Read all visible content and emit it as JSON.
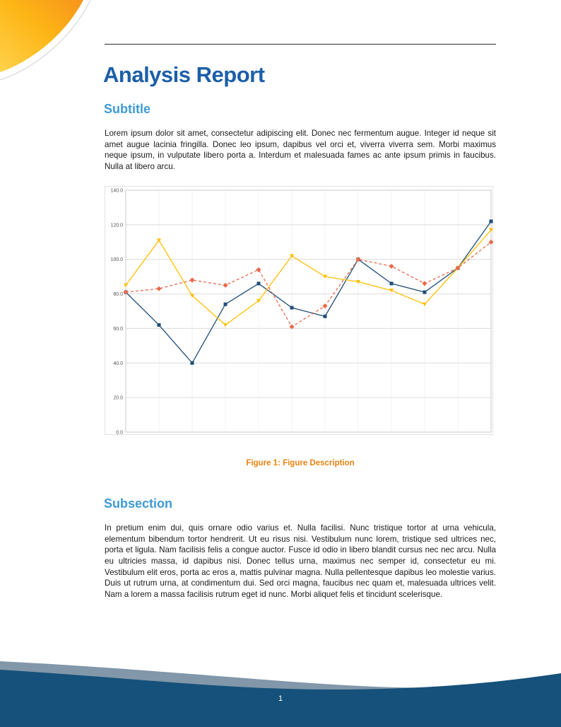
{
  "header": {
    "title": "Analysis Report"
  },
  "subtitle": {
    "heading": "Subtitle",
    "paragraph": "Lorem ipsum dolor sit amet, consectetur adipiscing elit. Donec nec fermentum augue. Integer id neque sit amet augue lacinia fringilla. Donec leo ipsum, dapibus vel orci et, viverra viverra sem. Morbi maximus neque ipsum, in vulputate libero porta a. Interdum et malesuada fames ac ante ipsum primis in faucibus. Nulla at libero arcu."
  },
  "figure": {
    "caption": "Figure 1: Figure Description"
  },
  "subsection": {
    "heading": "Subsection",
    "paragraph": "In pretium enim dui, quis ornare odio varius et. Nulla facilisi. Nunc tristique tortor at urna vehicula, elementum bibendum tortor hendrerit. Ut eu risus nisi. Vestibulum nunc lorem, tristique sed ultrices nec, porta et ligula. Nam facilisis felis a congue auctor. Fusce id odio in libero blandit cursus nec nec arcu. Nulla eu ultricies massa, id dapibus nisi. Donec tellus urna, maximus nec semper id, consectetur eu mi. Vestibulum elit eros, porta ac eros a, mattis pulvinar magna. Nulla pellentesque dapibus leo molestie varius. Duis ut rutrum urna, at condimentum dui. Sed orci magna, faucibus nec quam et, malesuada ultrices velit. Nam a lorem a massa facilisis rutrum eget id nunc. Morbi aliquet felis et tincidunt scelerisque."
  },
  "footer": {
    "page_number": "1"
  },
  "colors": {
    "title_blue": "#1c5fa9",
    "heading_blue": "#3d9bd5",
    "caption_orange": "#e8820e",
    "footer_navy": "#15517a",
    "wave_gray": "#8297a9",
    "corner_orange": "#f7941d",
    "corner_yellow": "#ffd24c"
  },
  "chart_data": {
    "type": "line",
    "x": [
      1,
      2,
      3,
      4,
      5,
      6,
      7,
      8,
      9,
      10,
      11,
      12
    ],
    "series": [
      {
        "name": "series-blue",
        "color": "#1f4e79",
        "dash": false,
        "marker": "square",
        "values": [
          81,
          62,
          40,
          74,
          86,
          72,
          67,
          100,
          86,
          81,
          95,
          122
        ]
      },
      {
        "name": "series-yellow",
        "color": "#ffc000",
        "dash": false,
        "marker": "triangle",
        "values": [
          85,
          111,
          79,
          62,
          76,
          102,
          90,
          87,
          82,
          74,
          95,
          117
        ]
      },
      {
        "name": "series-red",
        "color": "#e8694a",
        "dash": true,
        "marker": "diamond",
        "values": [
          81,
          83,
          88,
          85,
          94,
          61,
          73,
          100,
          96,
          86,
          95,
          110
        ]
      }
    ],
    "title": "",
    "xlabel": "",
    "ylabel": "",
    "ylim": [
      0,
      140
    ],
    "yticks": [
      "0.0",
      "20.0",
      "40.0",
      "60.0",
      "80.0",
      "100.0",
      "120.0",
      "140.0"
    ],
    "grid": true,
    "legend": "none"
  }
}
